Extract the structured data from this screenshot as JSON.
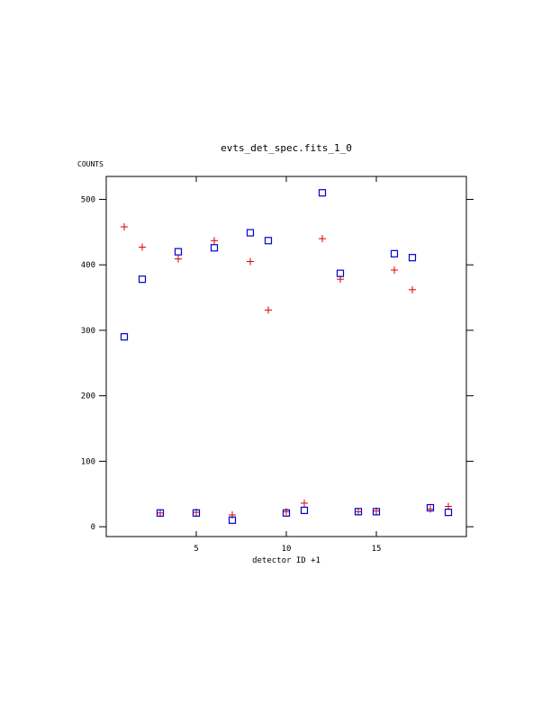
{
  "chart_data": {
    "type": "scatter",
    "title": "evts_det_spec.fits_1_0",
    "ylabel": "COUNTS",
    "xlabel": "detector ID +1",
    "xlim": [
      0,
      20
    ],
    "ylim": [
      -15,
      535
    ],
    "x_ticks": [
      5,
      10,
      15
    ],
    "y_ticks": [
      0,
      100,
      200,
      300,
      400,
      500
    ],
    "x_tick_labels": [
      "5",
      "10",
      "15"
    ],
    "y_tick_labels": [
      "0",
      "100",
      "200",
      "300",
      "400",
      "500"
    ],
    "grid": false,
    "series": [
      {
        "marker": "plus",
        "color": "#dd0000",
        "x": [
          1,
          2,
          3,
          4,
          5,
          6,
          7,
          8,
          9,
          10,
          11,
          12,
          13,
          14,
          15,
          16,
          17,
          18,
          19
        ],
        "y": [
          458,
          427,
          21,
          409,
          22,
          437,
          18,
          405,
          331,
          23,
          36,
          440,
          378,
          23,
          24,
          392,
          362,
          27,
          31
        ]
      },
      {
        "marker": "square",
        "color": "#0000cc",
        "x": [
          1,
          2,
          3,
          4,
          5,
          6,
          7,
          8,
          9,
          10,
          11,
          12,
          13,
          14,
          15,
          16,
          17,
          18,
          19
        ],
        "y": [
          290,
          378,
          21,
          420,
          21,
          426,
          10,
          449,
          437,
          21,
          25,
          510,
          387,
          23,
          23,
          417,
          411,
          29,
          22
        ]
      }
    ]
  }
}
